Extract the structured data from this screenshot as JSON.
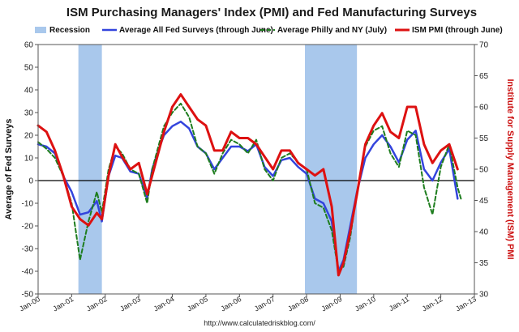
{
  "chart_data": {
    "type": "line",
    "title": "ISM Purchasing Managers' Index (PMI) and Fed Manufacturing Surveys",
    "ylabel": "Average of Fed Surveys",
    "y2label": "Institute for Supply Management (ISM) PMI",
    "ylim": [
      -50,
      60
    ],
    "y2lim": [
      30,
      70
    ],
    "yticks": [
      "-50",
      "-40",
      "-30",
      "-20",
      "-10",
      "0",
      "10",
      "20",
      "30",
      "40",
      "50",
      "60"
    ],
    "y2ticks": [
      "30",
      "35",
      "40",
      "45",
      "50",
      "55",
      "60",
      "65",
      "70"
    ],
    "xlim": [
      2000,
      2013
    ],
    "xticks": [
      "Jan-00",
      "Jan-01",
      "Jan-02",
      "Jan-03",
      "Jan-04",
      "Jan-05",
      "Jan-06",
      "Jan-07",
      "Jan-08",
      "Jan-09",
      "Jan-10",
      "Jan-11",
      "Jan-12",
      "Jan-13"
    ],
    "recessions": [
      [
        2001.2,
        2001.9
      ],
      [
        2007.95,
        2009.5
      ]
    ],
    "source": "http://www.calculatedriskblog.com/",
    "legend": {
      "recession": "Recession",
      "fed": "Average All Fed Surveys (through June)",
      "philly": "Average Philly and NY (July)",
      "ism": "ISM PMI (through June)"
    },
    "colors": {
      "fed": "#3344dd",
      "philly": "#1e7d1e",
      "ism": "#dd1111",
      "recession": "#a9c8ec"
    },
    "series": [
      {
        "name": "ISM PMI (through June)",
        "axis": "right",
        "x": [
          2000.0,
          2000.25,
          2000.5,
          2000.75,
          2001.0,
          2001.25,
          2001.5,
          2001.75,
          2001.9,
          2002.1,
          2002.3,
          2002.5,
          2002.75,
          2003.0,
          2003.25,
          2003.4,
          2003.6,
          2003.75,
          2004.0,
          2004.25,
          2004.5,
          2004.75,
          2005.0,
          2005.25,
          2005.5,
          2005.75,
          2006.0,
          2006.25,
          2006.5,
          2006.75,
          2007.0,
          2007.25,
          2007.5,
          2007.75,
          2008.0,
          2008.25,
          2008.5,
          2008.75,
          2008.95,
          2009.1,
          2009.3,
          2009.5,
          2009.75,
          2010.0,
          2010.25,
          2010.5,
          2010.75,
          2011.0,
          2011.25,
          2011.5,
          2011.75,
          2012.0,
          2012.25,
          2012.5
        ],
        "values": [
          57,
          56,
          53,
          49,
          44,
          42,
          41,
          43,
          42,
          49,
          54,
          52,
          50,
          51,
          46,
          49,
          53,
          56,
          60,
          62,
          60,
          58,
          57,
          53,
          53,
          56,
          55,
          55,
          54,
          52,
          50,
          53,
          53,
          51,
          50,
          49,
          50,
          44,
          33,
          35,
          40,
          46,
          54,
          57,
          59,
          56,
          55,
          60,
          60,
          54,
          51,
          53,
          54,
          50
        ]
      },
      {
        "name": "Average All Fed Surveys (through June)",
        "axis": "left",
        "x": [
          2000.0,
          2000.25,
          2000.5,
          2000.75,
          2001.0,
          2001.25,
          2001.5,
          2001.75,
          2001.9,
          2002.1,
          2002.3,
          2002.5,
          2002.75,
          2003.0,
          2003.25,
          2003.4,
          2003.6,
          2003.75,
          2004.0,
          2004.25,
          2004.5,
          2004.75,
          2005.0,
          2005.25,
          2005.5,
          2005.75,
          2006.0,
          2006.25,
          2006.5,
          2006.75,
          2007.0,
          2007.25,
          2007.5,
          2007.75,
          2008.0,
          2008.25,
          2008.5,
          2008.75,
          2008.95,
          2009.1,
          2009.3,
          2009.5,
          2009.75,
          2010.0,
          2010.25,
          2010.5,
          2010.75,
          2011.0,
          2011.25,
          2011.5,
          2011.75,
          2012.0,
          2012.25,
          2012.5
        ],
        "values": [
          16,
          15,
          12,
          2,
          -5,
          -15,
          -14,
          -9,
          -18,
          2,
          11,
          10,
          4,
          3,
          -8,
          5,
          14,
          20,
          24,
          26,
          23,
          15,
          12,
          5,
          10,
          15,
          15,
          13,
          16,
          6,
          2,
          9,
          10,
          6,
          3,
          -8,
          -10,
          -18,
          -40,
          -35,
          -20,
          -5,
          10,
          16,
          20,
          15,
          8,
          18,
          22,
          5,
          0,
          8,
          14,
          -8
        ]
      },
      {
        "name": "Average Philly and NY (July)",
        "axis": "left",
        "x": [
          2000.0,
          2000.25,
          2000.5,
          2000.75,
          2001.0,
          2001.25,
          2001.5,
          2001.75,
          2001.9,
          2002.1,
          2002.3,
          2002.5,
          2002.75,
          2003.0,
          2003.25,
          2003.4,
          2003.6,
          2003.75,
          2004.0,
          2004.25,
          2004.5,
          2004.75,
          2005.0,
          2005.25,
          2005.5,
          2005.75,
          2006.0,
          2006.25,
          2006.5,
          2006.75,
          2007.0,
          2007.25,
          2007.5,
          2007.75,
          2008.0,
          2008.25,
          2008.5,
          2008.75,
          2008.95,
          2009.1,
          2009.3,
          2009.5,
          2009.75,
          2010.0,
          2010.25,
          2010.5,
          2010.75,
          2011.0,
          2011.25,
          2011.5,
          2011.75,
          2012.0,
          2012.25,
          2012.5,
          2012.6
        ],
        "values": [
          17,
          14,
          10,
          2,
          -10,
          -35,
          -18,
          -5,
          -14,
          5,
          15,
          12,
          5,
          3,
          -10,
          5,
          16,
          24,
          30,
          34,
          28,
          15,
          12,
          3,
          12,
          18,
          16,
          12,
          18,
          5,
          0,
          10,
          12,
          8,
          5,
          -10,
          -12,
          -22,
          -40,
          -38,
          -25,
          -5,
          15,
          22,
          24,
          12,
          6,
          22,
          20,
          -3,
          -15,
          6,
          16,
          -3,
          -8
        ]
      }
    ]
  }
}
